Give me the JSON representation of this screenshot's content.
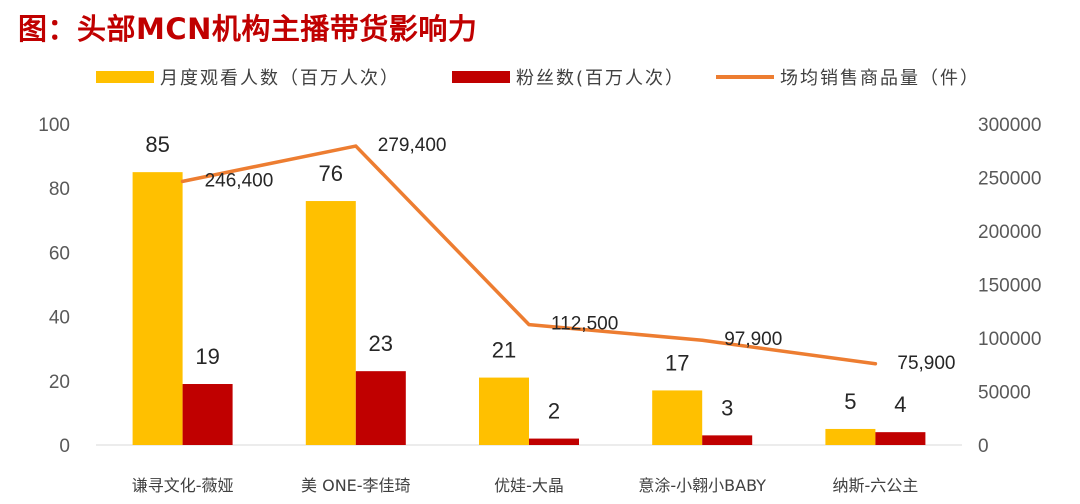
{
  "title": "图：头部MCN机构主播带货影响力",
  "colors": {
    "title": "#c00000",
    "bar_views": "#ffc000",
    "bar_fans": "#c00000",
    "line_sales": "#ed7d31"
  },
  "chart_data": {
    "type": "bar",
    "title": "图：头部MCN机构主播带货影响力",
    "categories": [
      "谦寻文化-薇娅",
      "美 ONE-李佳琦",
      "优娃-大晶",
      "意涂-小翱小BABY",
      "纳斯-六公主"
    ],
    "series": [
      {
        "name": "月度观看人数（百万人次）",
        "type": "bar",
        "axis": "left",
        "values": [
          85,
          76,
          21,
          17,
          5
        ],
        "labels": [
          "85",
          "76",
          "21",
          "17",
          "5"
        ]
      },
      {
        "name": "粉丝数(百万人次）",
        "type": "bar",
        "axis": "left",
        "values": [
          19,
          23,
          2,
          3,
          4
        ],
        "labels": [
          "19",
          "23",
          "2",
          "3",
          "4"
        ]
      },
      {
        "name": "场均销售商品量（件）",
        "type": "line",
        "axis": "right",
        "values": [
          246400,
          279400,
          112500,
          97900,
          75900
        ],
        "labels": [
          "246,400",
          "279,400",
          "112,500",
          "97,900",
          "75,900"
        ]
      }
    ],
    "y_left": {
      "ylim": [
        0,
        100
      ],
      "ticks": [
        0,
        20,
        40,
        60,
        80,
        100
      ],
      "tick_labels": [
        "0",
        "20",
        "40",
        "60",
        "80",
        "100"
      ]
    },
    "y_right": {
      "ylim": [
        0,
        300000
      ],
      "ticks": [
        0,
        50000,
        100000,
        150000,
        200000,
        250000,
        300000
      ],
      "tick_labels": [
        "0",
        "50000",
        "100000",
        "150000",
        "200000",
        "250000",
        "300000"
      ]
    },
    "grid": false,
    "legend_position": "top"
  }
}
